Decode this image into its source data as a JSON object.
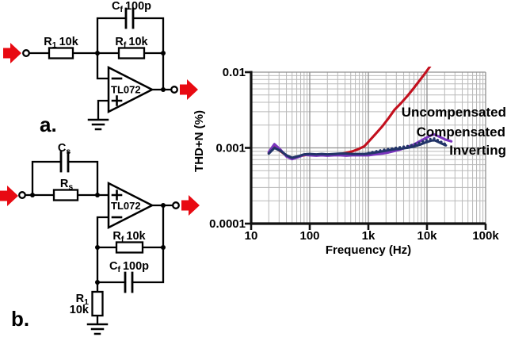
{
  "colors": {
    "ink": "#000000",
    "arrow_red": "#e80a12",
    "grid_minor": "#b9b9b9",
    "grid_major": "#8f8f8f",
    "axis": "#111111"
  },
  "circuits": {
    "a": {
      "label": "a.",
      "opamp": "TL072",
      "cf": {
        "sym": "C",
        "sub": "f",
        "val": "100p"
      },
      "r1": {
        "sym": "R",
        "sub": "1",
        "val": "10k"
      },
      "rf": {
        "sym": "R",
        "sub": "f",
        "val": "10k"
      }
    },
    "b": {
      "label": "b.",
      "opamp": "TL072",
      "cs": {
        "sym": "C",
        "sub": "s",
        "val": ""
      },
      "rs": {
        "sym": "R",
        "sub": "s",
        "val": ""
      },
      "rf": {
        "sym": "R",
        "sub": "f",
        "val": "10k"
      },
      "cf": {
        "sym": "C",
        "sub": "f",
        "val": "100p"
      },
      "r1": {
        "sym": "R",
        "sub": "1",
        "val": ""
      },
      "r1_line2": "10k"
    }
  },
  "chart_data": {
    "type": "line",
    "title": "",
    "xlabel": "Frequency (Hz)",
    "ylabel": "THD+N (%)",
    "x_scale": "log",
    "y_scale": "log",
    "xlim": [
      10,
      100000
    ],
    "ylim": [
      0.0001,
      0.01
    ],
    "grid": true,
    "legend_position": "labels-on-plot-right",
    "x_ticks": [
      "10",
      "100",
      "1k",
      "10k",
      "100k"
    ],
    "x_tick_values": [
      10,
      100,
      1000,
      10000,
      100000
    ],
    "y_ticks": [
      "0.01",
      "0.001",
      "0.0001"
    ],
    "y_tick_values": [
      0.01,
      0.001,
      0.0001
    ],
    "x": [
      20,
      25,
      32,
      40,
      50,
      65,
      80,
      100,
      130,
      160,
      200,
      260,
      330,
      420,
      530,
      670,
      850,
      1000,
      1300,
      1700,
      2200,
      2800,
      3600,
      4600,
      5900,
      7500,
      9500,
      12000,
      13500,
      17000,
      21000,
      26000
    ],
    "series": [
      {
        "id": "uncompensated",
        "name": "Uncompensated",
        "color": "#c3101e",
        "style": "solid",
        "values": [
          0.00086,
          0.00102,
          0.0009,
          0.00079,
          0.00073,
          0.00077,
          0.0008,
          0.00082,
          0.0008,
          0.00082,
          0.0008,
          0.00082,
          0.00083,
          0.00086,
          0.0009,
          0.00096,
          0.00105,
          0.0012,
          0.0015,
          0.0019,
          0.00245,
          0.0032,
          0.0039,
          0.0048,
          0.0061,
          0.0078,
          0.0099,
          0.0128,
          null,
          null,
          null,
          null
        ]
      },
      {
        "id": "compensated",
        "name": "Compensated",
        "color": "#7a35bd",
        "style": "solid",
        "values": [
          0.00088,
          0.00112,
          0.00094,
          0.00077,
          0.00071,
          0.00076,
          0.00081,
          0.0008,
          0.00079,
          0.0008,
          0.00079,
          0.0008,
          0.0008,
          0.00079,
          0.0008,
          0.0008,
          0.0008,
          0.0008,
          0.00082,
          0.00084,
          0.00087,
          0.00091,
          0.00096,
          0.00102,
          0.0011,
          0.00122,
          0.00135,
          0.00148,
          0.0015,
          0.00138,
          0.00128,
          0.00122
        ]
      },
      {
        "id": "inverting",
        "name": "Inverting",
        "color": "#223468",
        "style": "solid",
        "values": [
          0.00084,
          0.001,
          0.00091,
          0.0008,
          0.00074,
          0.00078,
          0.00082,
          0.00083,
          0.00082,
          0.00083,
          0.00082,
          0.00083,
          0.00084,
          0.00084,
          0.00083,
          0.00083,
          0.00083,
          0.00084,
          0.00087,
          0.0009,
          0.00093,
          0.00096,
          0.00098,
          0.001,
          0.00104,
          0.0011,
          0.00118,
          0.00125,
          0.00126,
          0.00116,
          0.00108,
          null
        ]
      },
      {
        "id": "inverting-dotted",
        "name": "Inverting (dotted trace)",
        "color": "#223468",
        "style": "dotted",
        "values": [
          null,
          null,
          null,
          null,
          null,
          null,
          null,
          null,
          null,
          null,
          null,
          null,
          null,
          null,
          null,
          null,
          null,
          0.00086,
          0.0009,
          0.00094,
          0.00097,
          0.001,
          0.00103,
          0.00106,
          0.00111,
          0.00118,
          0.00126,
          0.00133,
          0.00134,
          0.00122,
          0.00112,
          null
        ]
      }
    ]
  }
}
